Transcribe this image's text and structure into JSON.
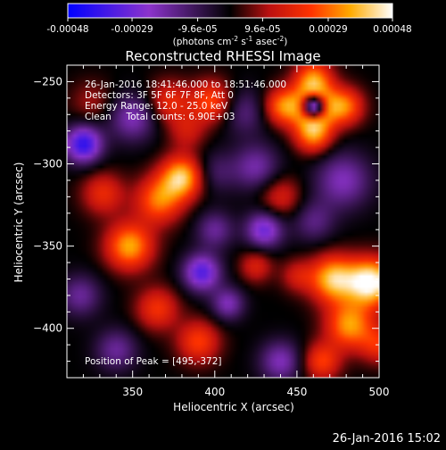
{
  "chart_data": {
    "type": "heatmap",
    "title": "Reconstructed RHESSI Image",
    "xlabel": "Heliocentric X (arcsec)",
    "ylabel": "Heliocentric Y (arcsec)",
    "xlim": [
      310,
      500
    ],
    "ylim": [
      -430,
      -240
    ],
    "x_ticks": [
      350,
      400,
      450,
      500
    ],
    "y_ticks": [
      -400,
      -350,
      -300,
      -250
    ],
    "colorbar": {
      "range": [
        -0.00048,
        0.00048
      ],
      "tick_labels": [
        "-0.00048",
        "-0.00029",
        "-9.6e-05",
        "9.6e-05",
        "0.00029",
        "0.00048"
      ],
      "tick_values": [
        -0.00048,
        -0.00029,
        -9.6e-05,
        9.6e-05,
        0.00029,
        0.00048
      ],
      "unit_parts": [
        "(photons cm",
        "-2",
        " s",
        "-1",
        " asec",
        "-2",
        ")"
      ]
    },
    "info_lines": [
      "26-Jan-2016 18:41:46.000 to 18:51:46.000",
      "Detectors: 3F 5F 6F 7F 8F, Att 0",
      "Energy Range: 12.0 - 25.0 keV",
      "Clean     Total counts: 6.90E+03"
    ],
    "peak_label": "Position of Peak = [495,-372]",
    "peak_position": [
      495,
      -372
    ],
    "colormap_stops": [
      [
        0.0,
        "#0000ff"
      ],
      [
        0.25,
        "#8c33cc"
      ],
      [
        0.5,
        "#000000"
      ],
      [
        0.62,
        "#bb1010"
      ],
      [
        0.75,
        "#ff3300"
      ],
      [
        0.87,
        "#ffaa00"
      ],
      [
        1.0,
        "#ffffff"
      ]
    ],
    "sources": [
      {
        "x": 460,
        "y": -265,
        "amp": 0.00046,
        "sigma": 9
      },
      {
        "x": 441,
        "y": -265,
        "amp": 0.0003,
        "sigma": 8
      },
      {
        "x": 479,
        "y": -265,
        "amp": 0.0003,
        "sigma": 8
      },
      {
        "x": 460,
        "y": -248,
        "amp": 0.0003,
        "sigma": 8
      },
      {
        "x": 460,
        "y": -282,
        "amp": 0.00032,
        "sigma": 8
      },
      {
        "x": 460,
        "y": -265,
        "amp": -0.0008,
        "sigma": 5
      },
      {
        "x": 418,
        "y": -268,
        "amp": -0.00015,
        "sigma": 10
      },
      {
        "x": 398,
        "y": -262,
        "amp": 0.00026,
        "sigma": 9
      },
      {
        "x": 383,
        "y": -280,
        "amp": 0.00014,
        "sigma": 8
      },
      {
        "x": 372,
        "y": -262,
        "amp": 0.0002,
        "sigma": 9
      },
      {
        "x": 350,
        "y": -272,
        "amp": -0.00022,
        "sigma": 10
      },
      {
        "x": 325,
        "y": -262,
        "amp": 0.0001,
        "sigma": 9
      },
      {
        "x": 320,
        "y": -288,
        "amp": -0.0004,
        "sigma": 8
      },
      {
        "x": 332,
        "y": -318,
        "amp": 0.0002,
        "sigma": 9
      },
      {
        "x": 348,
        "y": -350,
        "amp": 0.00036,
        "sigma": 10
      },
      {
        "x": 366,
        "y": -322,
        "amp": 0.0003,
        "sigma": 10
      },
      {
        "x": 380,
        "y": -308,
        "amp": 0.0004,
        "sigma": 9
      },
      {
        "x": 400,
        "y": -305,
        "amp": -0.00012,
        "sigma": 9
      },
      {
        "x": 425,
        "y": -302,
        "amp": -0.0002,
        "sigma": 10
      },
      {
        "x": 440,
        "y": -320,
        "amp": 0.00017,
        "sigma": 9
      },
      {
        "x": 478,
        "y": -310,
        "amp": -0.00022,
        "sigma": 12
      },
      {
        "x": 460,
        "y": -335,
        "amp": -0.00015,
        "sigma": 9
      },
      {
        "x": 430,
        "y": -340,
        "amp": -0.0003,
        "sigma": 8
      },
      {
        "x": 400,
        "y": -340,
        "amp": -0.00018,
        "sigma": 8
      },
      {
        "x": 392,
        "y": -366,
        "amp": -0.00034,
        "sigma": 8
      },
      {
        "x": 408,
        "y": -385,
        "amp": -0.00022,
        "sigma": 7
      },
      {
        "x": 425,
        "y": -362,
        "amp": 0.00017,
        "sigma": 7
      },
      {
        "x": 450,
        "y": -368,
        "amp": 0.00014,
        "sigma": 7
      },
      {
        "x": 318,
        "y": -380,
        "amp": -0.00018,
        "sigma": 9
      },
      {
        "x": 365,
        "y": -388,
        "amp": 0.00022,
        "sigma": 9
      },
      {
        "x": 390,
        "y": -408,
        "amp": 0.00024,
        "sigma": 9
      },
      {
        "x": 340,
        "y": -413,
        "amp": -0.00018,
        "sigma": 9
      },
      {
        "x": 440,
        "y": -420,
        "amp": -0.00022,
        "sigma": 9
      },
      {
        "x": 472,
        "y": -370,
        "amp": 0.0004,
        "sigma": 10
      },
      {
        "x": 495,
        "y": -372,
        "amp": 0.0005,
        "sigma": 10
      },
      {
        "x": 482,
        "y": -398,
        "amp": 0.00034,
        "sigma": 10
      },
      {
        "x": 465,
        "y": -420,
        "amp": 0.00024,
        "sigma": 8
      },
      {
        "x": 500,
        "y": -410,
        "amp": 0.0002,
        "sigma": 8
      }
    ]
  },
  "footer": {
    "timestamp": "26-Jan-2016 15:02"
  }
}
